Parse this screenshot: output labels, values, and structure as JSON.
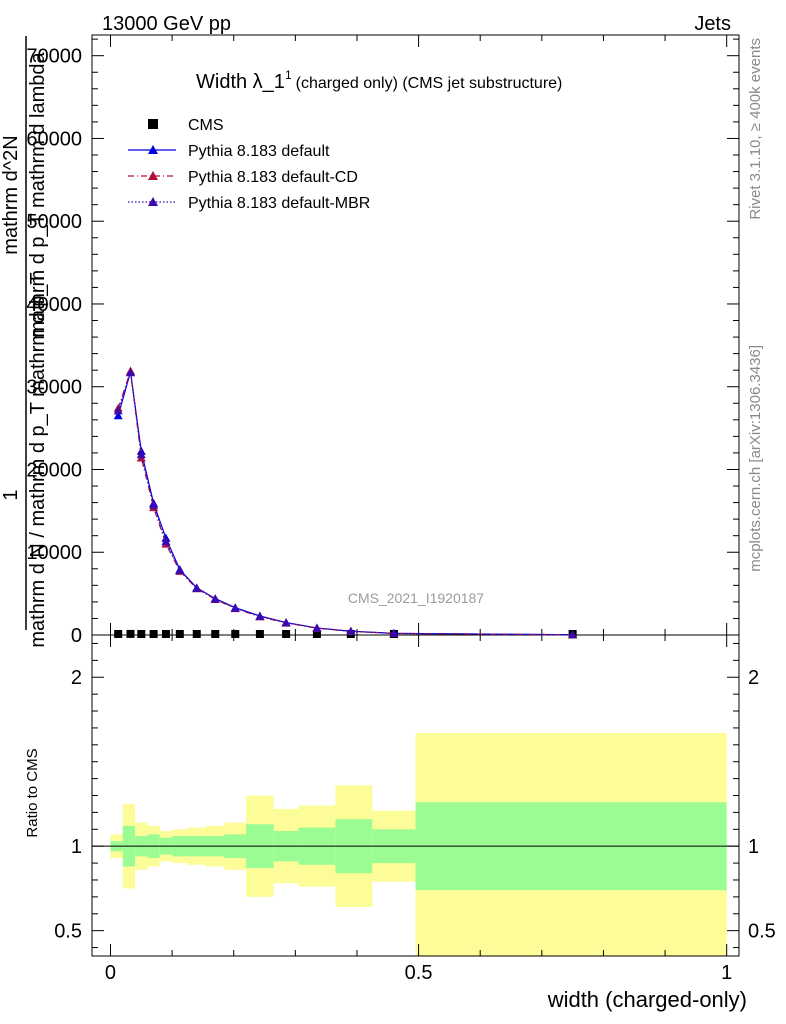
{
  "header": {
    "left": "13000 GeV pp",
    "right": "Jets"
  },
  "side_texts": {
    "rivet": "Rivet 3.1.10, ≥ 400k events",
    "mcplots": "mcplots.cern.ch [arXiv:1306.3436]"
  },
  "chart_data": {
    "type": "line",
    "title": {
      "main": "Width λ_1",
      "superscript": "1",
      "subtitle": "(charged only) (CMS jet substructure)"
    },
    "watermark": "CMS_2021_I1920187",
    "xlabel": "width (charged-only)",
    "xlim": [
      -0.03,
      1.02
    ],
    "x_ticks": [
      0,
      0.5,
      1
    ],
    "x_tick_labels": [
      "0",
      "0.5",
      "1"
    ],
    "upper": {
      "ylabel_parts": {
        "one": "1",
        "denominator": "mathrm d N / mathrm d p_T mathrm d p_T",
        "numerator_line1": "mathrm d^2N",
        "numerator_line2": "mathrm d p_T mathrm d lambda"
      },
      "ylim": [
        0,
        72500
      ],
      "y_ticks": [
        0,
        10000,
        20000,
        30000,
        40000,
        50000,
        60000,
        70000
      ],
      "y_tick_labels": [
        "0",
        "10000",
        "20000",
        "30000",
        "40000",
        "50000",
        "60000",
        "70000"
      ],
      "legend_position": "top-left",
      "series": [
        {
          "name": "CMS",
          "style": "square-marker",
          "color": "#000000",
          "x": [
            0.0125,
            0.0325,
            0.05,
            0.07,
            0.09,
            0.1125,
            0.14,
            0.17,
            0.2025,
            0.2425,
            0.285,
            0.335,
            0.39,
            0.46,
            0.75
          ],
          "y": [
            120,
            130,
            115,
            100,
            85,
            70,
            60,
            45,
            35,
            25,
            15,
            10,
            6,
            3,
            1
          ]
        },
        {
          "name": "Pythia 8.183 default",
          "style": "solid",
          "color": "#0000e0",
          "x": [
            0.0125,
            0.0325,
            0.05,
            0.07,
            0.09,
            0.1125,
            0.14,
            0.17,
            0.2025,
            0.2425,
            0.285,
            0.335,
            0.39,
            0.46,
            0.75
          ],
          "y": [
            26500,
            31800,
            22200,
            15900,
            11700,
            7900,
            5700,
            4400,
            3300,
            2300,
            1500,
            850,
            450,
            200,
            30
          ]
        },
        {
          "name": "Pythia 8.183 default-CD",
          "style": "dashdot",
          "color": "#b0103a",
          "x": [
            0.0125,
            0.0325,
            0.05,
            0.07,
            0.09,
            0.1125,
            0.14,
            0.17,
            0.2025,
            0.2425,
            0.285,
            0.335,
            0.39,
            0.46,
            0.75
          ],
          "y": [
            27400,
            31900,
            21400,
            15400,
            11000,
            7700,
            5600,
            4300,
            3200,
            2200,
            1450,
            820,
            440,
            190,
            30
          ]
        },
        {
          "name": "Pythia 8.183 default-MBR",
          "style": "dotted",
          "color": "#3a0ab0",
          "x": [
            0.0125,
            0.0325,
            0.05,
            0.07,
            0.09,
            0.1125,
            0.14,
            0.17,
            0.2025,
            0.2425,
            0.285,
            0.335,
            0.39,
            0.46,
            0.75
          ],
          "y": [
            27100,
            31700,
            21800,
            15700,
            11300,
            7800,
            5650,
            4350,
            3250,
            2250,
            1480,
            830,
            445,
            195,
            30
          ]
        }
      ]
    },
    "lower": {
      "ylabel": "Ratio to CMS",
      "ylim": [
        0.35,
        2.25
      ],
      "y_ticks": [
        0.5,
        1,
        2
      ],
      "y_tick_labels": [
        "0.5",
        "1",
        "2"
      ],
      "reference_line": 1,
      "band_colors": {
        "inner": "#9cfc94",
        "outer": "#fcfc98"
      },
      "bins": [
        {
          "x0": 0.0,
          "x1": 0.02,
          "inner": [
            0.97,
            1.03
          ],
          "outer": [
            0.93,
            1.07
          ]
        },
        {
          "x0": 0.02,
          "x1": 0.04,
          "inner": [
            0.88,
            1.12
          ],
          "outer": [
            0.75,
            1.25
          ]
        },
        {
          "x0": 0.04,
          "x1": 0.06,
          "inner": [
            0.94,
            1.06
          ],
          "outer": [
            0.86,
            1.14
          ]
        },
        {
          "x0": 0.06,
          "x1": 0.08,
          "inner": [
            0.93,
            1.07
          ],
          "outer": [
            0.88,
            1.12
          ]
        },
        {
          "x0": 0.08,
          "x1": 0.1,
          "inner": [
            0.95,
            1.05
          ],
          "outer": [
            0.91,
            1.09
          ]
        },
        {
          "x0": 0.1,
          "x1": 0.125,
          "inner": [
            0.94,
            1.06
          ],
          "outer": [
            0.9,
            1.1
          ]
        },
        {
          "x0": 0.125,
          "x1": 0.155,
          "inner": [
            0.94,
            1.06
          ],
          "outer": [
            0.89,
            1.11
          ]
        },
        {
          "x0": 0.155,
          "x1": 0.185,
          "inner": [
            0.94,
            1.06
          ],
          "outer": [
            0.88,
            1.12
          ]
        },
        {
          "x0": 0.185,
          "x1": 0.22,
          "inner": [
            0.93,
            1.07
          ],
          "outer": [
            0.86,
            1.14
          ]
        },
        {
          "x0": 0.22,
          "x1": 0.265,
          "inner": [
            0.87,
            1.13
          ],
          "outer": [
            0.7,
            1.3
          ]
        },
        {
          "x0": 0.265,
          "x1": 0.305,
          "inner": [
            0.91,
            1.09
          ],
          "outer": [
            0.78,
            1.22
          ]
        },
        {
          "x0": 0.305,
          "x1": 0.365,
          "inner": [
            0.89,
            1.11
          ],
          "outer": [
            0.76,
            1.24
          ]
        },
        {
          "x0": 0.365,
          "x1": 0.425,
          "inner": [
            0.84,
            1.16
          ],
          "outer": [
            0.64,
            1.36
          ]
        },
        {
          "x0": 0.425,
          "x1": 0.495,
          "inner": [
            0.9,
            1.1
          ],
          "outer": [
            0.79,
            1.21
          ]
        },
        {
          "x0": 0.495,
          "x1": 1.0,
          "inner": [
            0.74,
            1.26
          ],
          "outer": [
            0.0,
            1.67
          ]
        }
      ]
    }
  }
}
